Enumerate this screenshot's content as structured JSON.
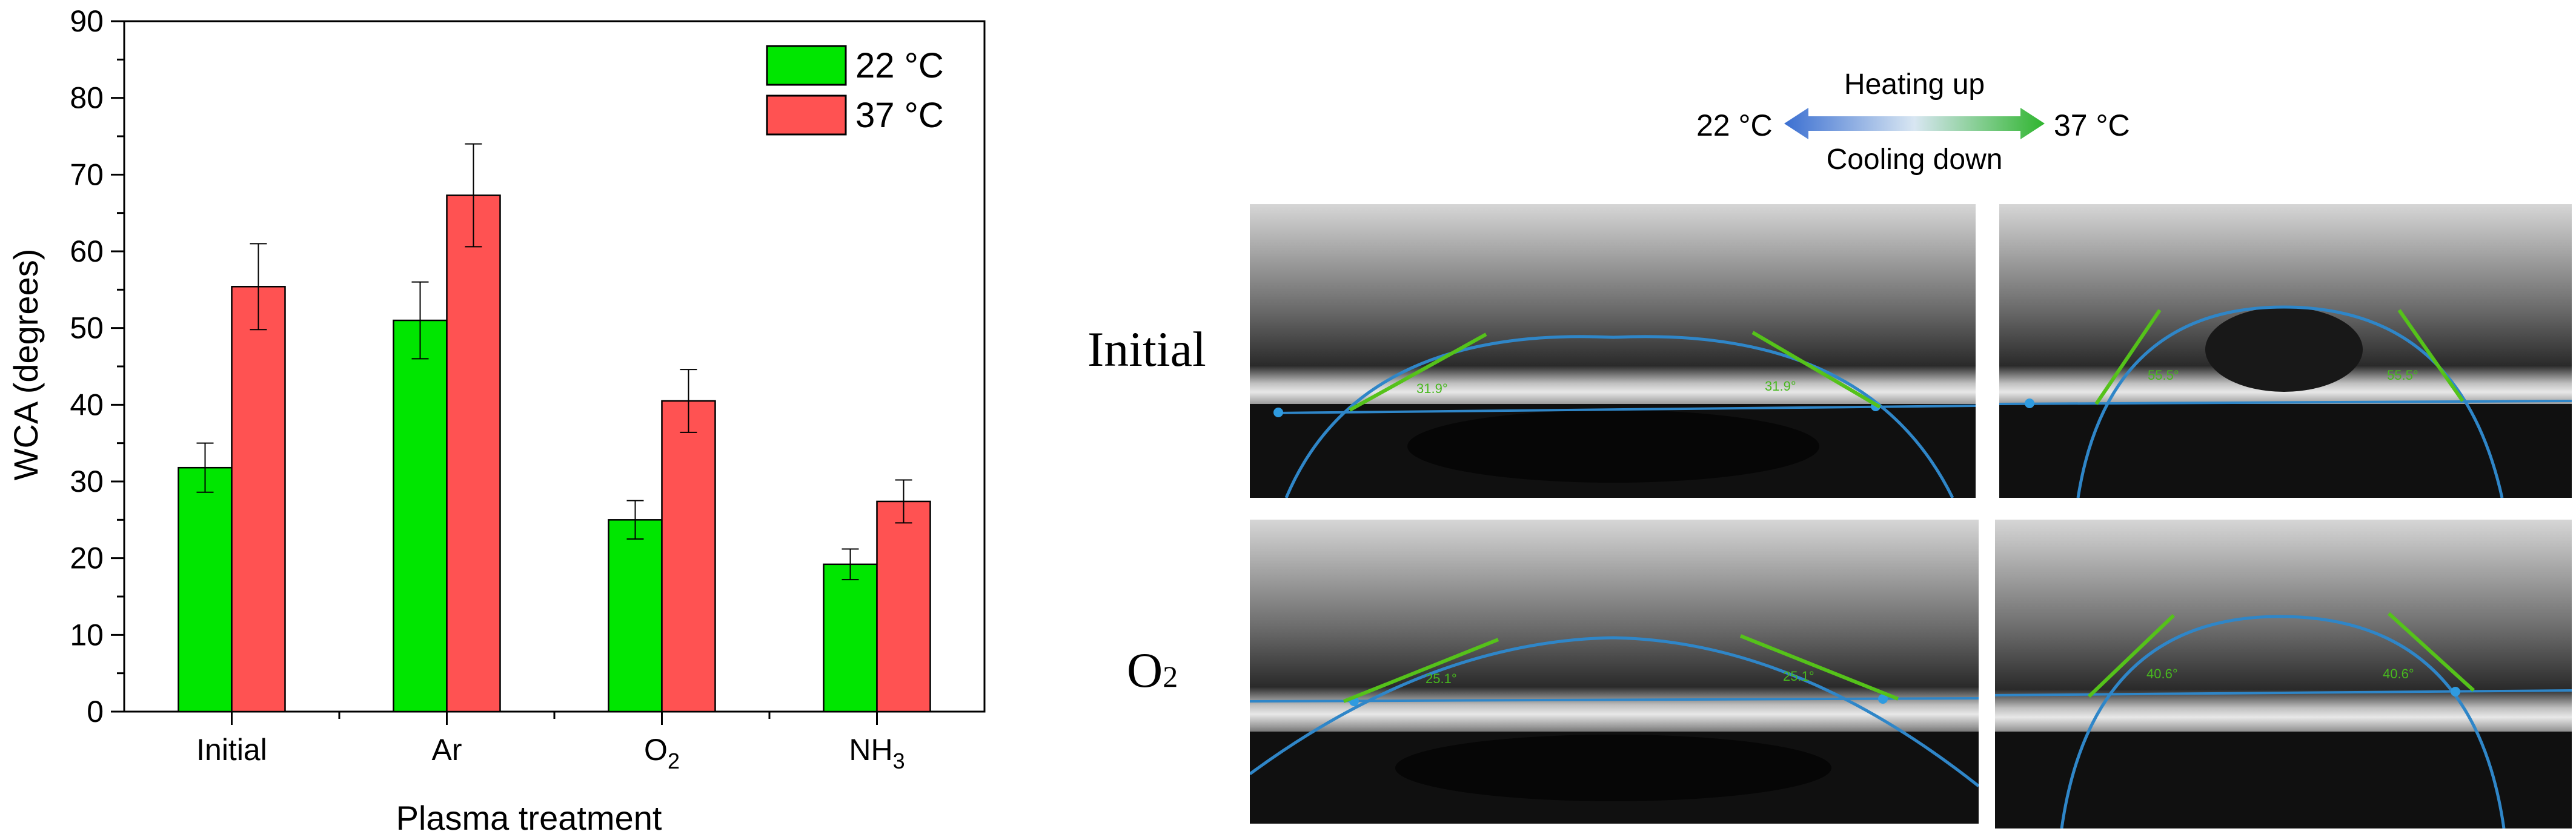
{
  "chart_data": {
    "type": "bar",
    "categories": [
      "Initial",
      "Ar",
      "O2",
      "NH3"
    ],
    "category_labels": [
      {
        "main": "Initial",
        "sub": ""
      },
      {
        "main": "Ar",
        "sub": ""
      },
      {
        "main": "O",
        "sub": "2"
      },
      {
        "main": "NH",
        "sub": "3"
      }
    ],
    "series": [
      {
        "name": "22 °C",
        "color": "#00e600",
        "values": [
          31.8,
          51.0,
          25.0,
          19.2
        ],
        "errors": [
          3.2,
          5.0,
          2.5,
          2.0
        ]
      },
      {
        "name": "37 °C",
        "color": "#ff5252",
        "values": [
          55.4,
          67.3,
          40.5,
          27.4
        ],
        "errors": [
          5.6,
          6.7,
          4.1,
          2.8
        ]
      }
    ],
    "ylim": [
      0,
      90
    ],
    "yticks": [
      0,
      10,
      20,
      30,
      40,
      50,
      60,
      70,
      80,
      90
    ],
    "xlabel": "Plasma treatment",
    "ylabel": "WCA (degrees)",
    "legend_position": "top-right"
  },
  "temperature_arrow": {
    "left_label": "22 °C",
    "right_label": "37 °C",
    "top_caption": "Heating up",
    "bottom_caption": "Cooling down"
  },
  "droplet_panels": {
    "row_labels": {
      "initial": "Initial",
      "o2_main": "O",
      "o2_sub": "2"
    },
    "angles": {
      "initial_22": "31.9°",
      "initial_37": "55.5°",
      "o2_22": "25.1°",
      "o2_37": "40.6°"
    },
    "colors": {
      "fit_line": "#2f86c8",
      "tangent": "#55c21a",
      "angle_text": "#47b81e"
    }
  }
}
